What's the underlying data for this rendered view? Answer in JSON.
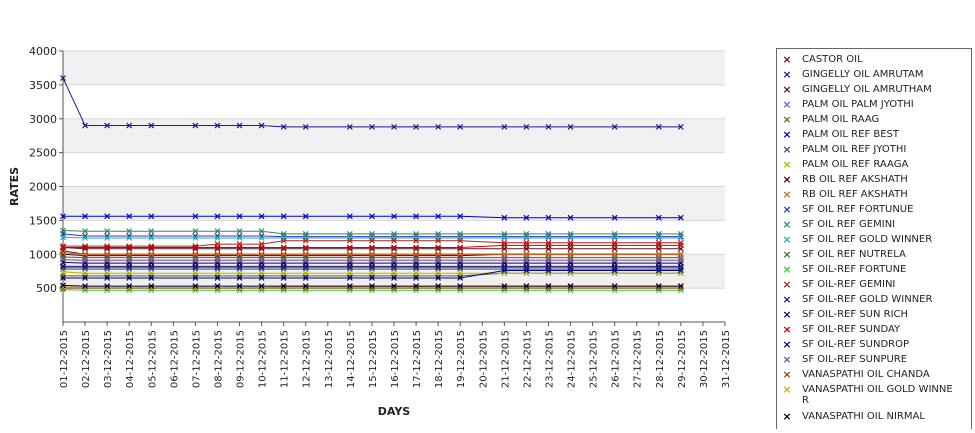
{
  "chart_data": {
    "type": "line",
    "xlabel": "DAYS",
    "ylabel": "RATES",
    "ylim": [
      0,
      4000
    ],
    "yticks": [
      "500",
      "1000",
      "1500",
      "2000",
      "2500",
      "3000",
      "3500",
      "4000"
    ],
    "categories": [
      "01-12-2015",
      "02-12-2015",
      "03-12-2015",
      "04-12-2015",
      "05-12-2015",
      "06-12-2015",
      "07-12-2015",
      "08-12-2015",
      "09-12-2015",
      "10-12-2015",
      "11-12-2015",
      "12-12-2015",
      "13-12-2015",
      "14-12-2015",
      "15-12-2015",
      "16-12-2015",
      "17-12-2015",
      "18-12-2015",
      "19-12-2015",
      "20-12-2015",
      "21-12-2015",
      "22-12-2015",
      "23-12-2015",
      "24-12-2015",
      "25-12-2015",
      "26-12-2015",
      "27-12-2015",
      "28-12-2015",
      "29-12-2015",
      "30-12-2015",
      "31-12-2015"
    ],
    "grid": true,
    "legend_position": "right",
    "series": [
      {
        "name": "CASTOR OIL",
        "color": "#8b0000",
        "values": [
          1050,
          1000,
          1000,
          1000,
          1000,
          null,
          1000,
          1000,
          1000,
          1000,
          1000,
          1000,
          null,
          1000,
          1000,
          1000,
          1000,
          1000,
          1000,
          null,
          1000,
          1000,
          1000,
          1000,
          null,
          1000,
          null,
          1000,
          1000,
          null,
          null
        ]
      },
      {
        "name": "GINGELLY OIL AMRUTAM",
        "color": "#1a1a8b",
        "values": [
          3600,
          2900,
          2900,
          2900,
          2900,
          null,
          2900,
          2900,
          2900,
          2900,
          2880,
          2880,
          null,
          2880,
          2880,
          2880,
          2880,
          2880,
          2880,
          null,
          2880,
          2880,
          2880,
          2880,
          null,
          2880,
          null,
          2880,
          2880,
          null,
          null
        ]
      },
      {
        "name": "GINGELLY OIL AMRUTHAM",
        "color": "#551a1a",
        "values": [
          1100,
          1080,
          1080,
          1080,
          1080,
          null,
          1080,
          1080,
          1080,
          1080,
          1080,
          1080,
          null,
          1080,
          1080,
          1080,
          1080,
          1080,
          1080,
          null,
          1080,
          1080,
          1080,
          1080,
          null,
          1080,
          null,
          1080,
          1080,
          null,
          null
        ]
      },
      {
        "name": "PALM OIL PALM JYOTHI",
        "color": "#6a5acd",
        "values": [
          780,
          780,
          780,
          780,
          780,
          null,
          780,
          780,
          780,
          780,
          780,
          780,
          null,
          780,
          780,
          780,
          780,
          780,
          780,
          null,
          780,
          780,
          780,
          780,
          null,
          780,
          null,
          780,
          780,
          null,
          null
        ]
      },
      {
        "name": "PALM OIL RAAG",
        "color": "#6b6b00",
        "values": [
          680,
          680,
          680,
          680,
          680,
          null,
          680,
          680,
          680,
          680,
          680,
          680,
          null,
          680,
          680,
          680,
          680,
          680,
          680,
          null,
          720,
          720,
          720,
          720,
          null,
          720,
          null,
          720,
          720,
          null,
          null
        ]
      },
      {
        "name": "PALM OIL REF BEST",
        "color": "#0000cd",
        "values": [
          1560,
          1560,
          1560,
          1560,
          1560,
          null,
          1560,
          1560,
          1560,
          1560,
          1560,
          1560,
          null,
          1560,
          1560,
          1560,
          1560,
          1560,
          1560,
          null,
          1540,
          1540,
          1540,
          1540,
          null,
          1540,
          null,
          1540,
          1540,
          null,
          null
        ]
      },
      {
        "name": "PALM OIL REF JYOTHI",
        "color": "#2f4f7f",
        "values": [
          800,
          800,
          800,
          800,
          800,
          null,
          800,
          800,
          800,
          800,
          800,
          800,
          null,
          800,
          800,
          800,
          800,
          800,
          800,
          null,
          800,
          800,
          800,
          800,
          null,
          800,
          null,
          800,
          800,
          null,
          null
        ]
      },
      {
        "name": "PALM OIL REF RAAGA",
        "color": "#b8b800",
        "values": [
          740,
          720,
          720,
          720,
          720,
          null,
          720,
          720,
          720,
          720,
          720,
          720,
          null,
          720,
          720,
          720,
          720,
          720,
          720,
          null,
          720,
          720,
          720,
          720,
          null,
          720,
          null,
          720,
          720,
          null,
          null
        ]
      },
      {
        "name": "RB OIL REF  AKSHATH",
        "color": "#4a0000",
        "values": [
          1000,
          980,
          980,
          980,
          980,
          null,
          980,
          980,
          980,
          980,
          980,
          980,
          null,
          980,
          980,
          980,
          980,
          980,
          980,
          null,
          1000,
          1000,
          1000,
          1000,
          null,
          1000,
          null,
          1000,
          1000,
          null,
          null
        ]
      },
      {
        "name": "RB OIL REF AKSHATH",
        "color": "#d2691e",
        "values": [
          1020,
          1000,
          1000,
          1000,
          1000,
          null,
          1000,
          1000,
          1000,
          1000,
          1000,
          1000,
          null,
          1000,
          1000,
          1000,
          1000,
          1000,
          1000,
          null,
          1000,
          1000,
          1000,
          1000,
          null,
          1000,
          null,
          1000,
          1000,
          null,
          null
        ]
      },
      {
        "name": "SF OIL REF FORTUNUE",
        "color": "#3333cc",
        "values": [
          1300,
          1270,
          1270,
          1270,
          1270,
          null,
          1270,
          1270,
          1270,
          1270,
          1260,
          1260,
          null,
          1260,
          1260,
          1260,
          1260,
          1260,
          1260,
          null,
          1260,
          1260,
          1260,
          1260,
          null,
          1260,
          null,
          1260,
          1260,
          null,
          null
        ]
      },
      {
        "name": "SF OIL REF GEMINI",
        "color": "#2e8b57",
        "values": [
          1350,
          1340,
          1340,
          1340,
          1340,
          null,
          1340,
          1340,
          1340,
          1340,
          1300,
          1300,
          null,
          1300,
          1300,
          1300,
          1300,
          1300,
          1300,
          null,
          1300,
          1300,
          1300,
          1300,
          null,
          1300,
          null,
          1300,
          1300,
          null,
          null
        ]
      },
      {
        "name": "SF OIL REF GOLD WINNER",
        "color": "#20b2aa",
        "values": [
          1250,
          1240,
          1240,
          1240,
          1240,
          null,
          1240,
          1240,
          1240,
          1240,
          1240,
          1240,
          null,
          1240,
          1240,
          1240,
          1240,
          1240,
          1240,
          null,
          1240,
          1240,
          1240,
          1240,
          null,
          1240,
          null,
          1240,
          1240,
          null,
          null
        ]
      },
      {
        "name": "SF OIL REF NUTRELA",
        "color": "#556b2f",
        "values": [
          960,
          950,
          950,
          950,
          950,
          null,
          950,
          950,
          950,
          950,
          950,
          950,
          null,
          950,
          950,
          950,
          950,
          950,
          950,
          null,
          950,
          950,
          950,
          950,
          null,
          950,
          null,
          950,
          950,
          null,
          null
        ]
      },
      {
        "name": "SF OIL-REF FORTUNE",
        "color": "#32cd32",
        "values": [
          480,
          470,
          470,
          470,
          470,
          null,
          470,
          470,
          470,
          470,
          470,
          470,
          null,
          470,
          470,
          470,
          470,
          470,
          470,
          null,
          470,
          470,
          470,
          470,
          null,
          470,
          null,
          470,
          470,
          null,
          null
        ]
      },
      {
        "name": "SF OIL-REF GEMINI",
        "color": "#b22222",
        "values": [
          1120,
          1120,
          1120,
          1120,
          1120,
          null,
          1120,
          1150,
          1150,
          1150,
          1200,
          1200,
          null,
          1200,
          1200,
          1200,
          1200,
          1200,
          1200,
          null,
          1170,
          1170,
          1170,
          1170,
          null,
          1170,
          null,
          1170,
          1170,
          null,
          null
        ]
      },
      {
        "name": "SF OIL-REF GOLD WINNER",
        "color": "#191970",
        "values": [
          820,
          820,
          820,
          820,
          820,
          null,
          820,
          820,
          820,
          820,
          820,
          820,
          null,
          820,
          820,
          820,
          820,
          820,
          820,
          null,
          820,
          820,
          820,
          820,
          null,
          820,
          null,
          820,
          820,
          null,
          null
        ]
      },
      {
        "name": "SF OIL-REF SUN RICH",
        "color": "#00008b",
        "values": [
          650,
          650,
          650,
          650,
          650,
          null,
          650,
          650,
          650,
          650,
          650,
          650,
          null,
          650,
          650,
          650,
          650,
          650,
          650,
          null,
          760,
          760,
          760,
          760,
          null,
          760,
          null,
          760,
          760,
          null,
          null
        ]
      },
      {
        "name": "SF OIL-REF SUNDAY",
        "color": "#cc0000",
        "values": [
          1100,
          1100,
          1100,
          1100,
          1100,
          null,
          1100,
          1100,
          1100,
          1100,
          1100,
          1100,
          null,
          1100,
          1100,
          1100,
          1100,
          1100,
          1100,
          null,
          1130,
          1130,
          1130,
          1130,
          null,
          1130,
          null,
          1130,
          1130,
          null,
          null
        ]
      },
      {
        "name": "SF OIL-REF SUNDROP",
        "color": "#0a0a5a",
        "values": [
          880,
          870,
          870,
          870,
          870,
          null,
          870,
          870,
          870,
          870,
          870,
          870,
          null,
          870,
          870,
          870,
          870,
          870,
          870,
          null,
          870,
          870,
          870,
          870,
          null,
          870,
          null,
          870,
          870,
          null,
          null
        ]
      },
      {
        "name": "SF OIL-REF SUNPURE",
        "color": "#7b4f9d",
        "values": [
          920,
          910,
          910,
          910,
          910,
          null,
          910,
          910,
          910,
          910,
          910,
          910,
          null,
          910,
          910,
          910,
          910,
          910,
          910,
          null,
          910,
          910,
          910,
          910,
          null,
          910,
          null,
          910,
          910,
          null,
          null
        ]
      },
      {
        "name": "VANASPATHI OIL CHANDA",
        "color": "#8b4513",
        "values": [
          500,
          500,
          500,
          500,
          500,
          null,
          500,
          500,
          500,
          500,
          500,
          500,
          null,
          500,
          500,
          500,
          500,
          500,
          500,
          null,
          500,
          500,
          500,
          500,
          null,
          500,
          null,
          500,
          500,
          null,
          null
        ]
      },
      {
        "name": "VANASPATHI OIL GOLD WINNER",
        "color": "#daa520",
        "values": [
          520,
          510,
          510,
          510,
          510,
          null,
          510,
          510,
          510,
          510,
          520,
          520,
          null,
          520,
          520,
          520,
          520,
          520,
          520,
          null,
          520,
          520,
          520,
          520,
          null,
          520,
          null,
          520,
          520,
          null,
          null
        ]
      },
      {
        "name": "VANASPATHI OIL NIRMAL",
        "color": "#000033",
        "values": [
          540,
          530,
          530,
          530,
          530,
          null,
          530,
          530,
          530,
          530,
          530,
          530,
          null,
          530,
          530,
          530,
          530,
          530,
          530,
          null,
          530,
          530,
          530,
          530,
          null,
          530,
          null,
          530,
          530,
          null,
          null
        ]
      }
    ],
    "legend_labels": {
      "VANASPATHI OIL GOLD WINNER": [
        "VANASPATHI OIL GOLD WINNE",
        "R"
      ]
    }
  }
}
